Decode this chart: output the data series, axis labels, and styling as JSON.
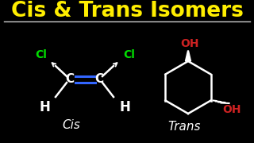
{
  "background_color": "#000000",
  "title": "Cis & Trans Isomers",
  "title_color": "#FFEE00",
  "title_fontsize": 19,
  "separator_color": "#CCCCCC",
  "cis_label": "Cis",
  "trans_label": "Trans",
  "label_color": "#FFFFFF",
  "label_fontsize": 11,
  "cl_color": "#00DD00",
  "oh_color": "#CC2222",
  "atom_color": "#FFFFFF",
  "bond_color": "#FFFFFF",
  "double_bond_color": "#3366FF",
  "fig_width": 3.2,
  "fig_height": 1.8,
  "dpi": 100
}
